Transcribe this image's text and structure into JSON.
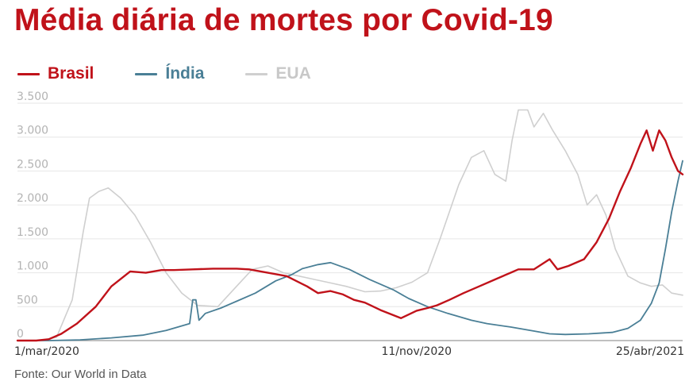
{
  "chart_data": {
    "type": "line",
    "title": "Média diária de mortes por Covid-19",
    "source": "Fonte: Our World in Data",
    "xlabel": "",
    "ylabel": "",
    "ylim": [
      0,
      3500
    ],
    "yticks": [
      0,
      500,
      1000,
      1500,
      2000,
      2500,
      3000,
      3500
    ],
    "ytick_labels": [
      "0",
      "500",
      "1.000",
      "1.500",
      "2.000",
      "2.500",
      "3.000",
      "3.500"
    ],
    "xticks": [
      {
        "day": 0,
        "label": "1/mar/2020"
      },
      {
        "day": 255,
        "label": "11/nov/2020"
      },
      {
        "day": 420,
        "label": "25/abr/2021"
      }
    ],
    "xlim": [
      0,
      425
    ],
    "grid": true,
    "legend_position": "top-left",
    "series": [
      {
        "name": "Brasil",
        "color": "#c0121a",
        "x": [
          0,
          12,
          20,
          28,
          38,
          50,
          60,
          72,
          82,
          92,
          100,
          112,
          125,
          140,
          148,
          160,
          172,
          185,
          192,
          200,
          208,
          215,
          222,
          232,
          245,
          255,
          262,
          268,
          276,
          285,
          295,
          305,
          315,
          320,
          330,
          340,
          345,
          352,
          362,
          370,
          378,
          385,
          392,
          398,
          402,
          406,
          410,
          414,
          418,
          422,
          425
        ],
        "values": [
          0,
          0,
          20,
          100,
          250,
          500,
          800,
          1020,
          1000,
          1040,
          1040,
          1050,
          1060,
          1060,
          1050,
          1000,
          950,
          800,
          700,
          730,
          680,
          600,
          560,
          450,
          330,
          440,
          480,
          520,
          600,
          700,
          800,
          900,
          1000,
          1050,
          1050,
          1200,
          1050,
          1100,
          1200,
          1450,
          1800,
          2200,
          2550,
          2900,
          3100,
          2800,
          3100,
          2950,
          2700,
          2500,
          2450
        ]
      },
      {
        "name": "Índia",
        "color": "#4a7f96",
        "x": [
          0,
          20,
          40,
          60,
          80,
          95,
          110,
          112,
          114,
          116,
          118,
          120,
          130,
          140,
          152,
          165,
          175,
          182,
          192,
          200,
          212,
          225,
          240,
          250,
          262,
          275,
          290,
          300,
          315,
          330,
          340,
          350,
          365,
          380,
          390,
          398,
          405,
          410,
          414,
          418,
          422,
          425
        ],
        "values": [
          0,
          0,
          10,
          40,
          80,
          150,
          250,
          600,
          600,
          300,
          350,
          400,
          480,
          580,
          700,
          880,
          970,
          1060,
          1120,
          1150,
          1050,
          900,
          750,
          620,
          500,
          400,
          300,
          250,
          200,
          140,
          100,
          90,
          100,
          120,
          180,
          300,
          550,
          850,
          1350,
          1900,
          2350,
          2650
        ]
      },
      {
        "name": "EUA",
        "color": "#cfcfcf",
        "x": [
          0,
          15,
          25,
          35,
          42,
          46,
          52,
          58,
          66,
          75,
          85,
          95,
          105,
          115,
          128,
          140,
          150,
          160,
          170,
          180,
          190,
          200,
          210,
          222,
          232,
          242,
          252,
          262,
          270,
          276,
          282,
          290,
          298,
          305,
          312,
          316,
          320,
          326,
          330,
          336,
          342,
          350,
          358,
          364,
          370,
          376,
          382,
          390,
          398,
          405,
          412,
          418,
          425
        ],
        "values": [
          0,
          0,
          50,
          600,
          1600,
          2100,
          2200,
          2250,
          2100,
          1850,
          1450,
          1000,
          700,
          520,
          500,
          800,
          1050,
          1100,
          1000,
          950,
          900,
          850,
          800,
          720,
          730,
          780,
          860,
          1000,
          1500,
          1900,
          2300,
          2700,
          2800,
          2450,
          2350,
          2950,
          3400,
          3400,
          3150,
          3350,
          3100,
          2800,
          2450,
          2000,
          2150,
          1850,
          1350,
          950,
          850,
          800,
          820,
          700,
          670
        ]
      }
    ]
  }
}
